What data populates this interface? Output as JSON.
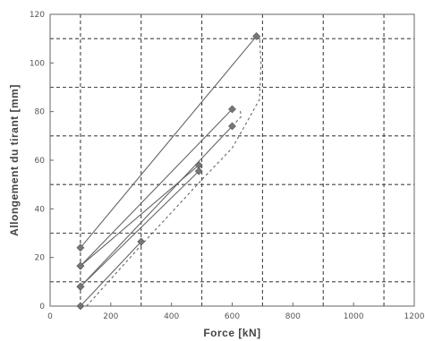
{
  "chart_data": {
    "type": "line",
    "title": "",
    "xlabel": "Force [kN]",
    "ylabel": "Allongement du tirant [mm]",
    "xlim": [
      0,
      1200
    ],
    "ylim": [
      0,
      120
    ],
    "xticks": [
      0,
      200,
      400,
      600,
      800,
      1000,
      1200
    ],
    "yticks": [
      0,
      20,
      40,
      60,
      80,
      100,
      120
    ],
    "tick_labels_x": [
      "0",
      "200",
      "400",
      "600",
      "800",
      "1000",
      "1200"
    ],
    "tick_labels_y": [
      "0",
      "20",
      "40",
      "60",
      "80",
      "100",
      "120"
    ],
    "gridlines_x": [
      100,
      300,
      500,
      700,
      900,
      1100
    ],
    "gridlines_y": [
      10,
      30,
      50,
      70,
      90,
      110
    ],
    "grid": true,
    "legend": "none",
    "series": [
      {
        "x": [
          100,
          680
        ],
        "y": [
          24,
          111
        ],
        "style": "solid",
        "marker": "diamond"
      },
      {
        "x": [
          100,
          600
        ],
        "y": [
          16.5,
          81
        ],
        "style": "solid",
        "marker": "diamond"
      },
      {
        "x": [
          100,
          490
        ],
        "y": [
          16.5,
          58
        ],
        "style": "solid",
        "marker": "diamond"
      },
      {
        "x": [
          100,
          600
        ],
        "y": [
          8,
          74
        ],
        "style": "solid",
        "marker": "diamond"
      },
      {
        "x": [
          100,
          490
        ],
        "y": [
          8,
          55.5
        ],
        "style": "solid",
        "marker": "diamond"
      },
      {
        "x": [
          100,
          300
        ],
        "y": [
          0,
          26.5
        ],
        "style": "solid",
        "marker": "diamond"
      },
      {
        "x": [
          120,
          300,
          500,
          600,
          650,
          690,
          695,
          690
        ],
        "y": [
          0,
          25,
          52,
          65,
          76,
          85,
          100,
          111
        ],
        "style": "dashed",
        "marker": "none"
      },
      {
        "x": [
          600,
          630,
          625
        ],
        "y": [
          74,
          78,
          81
        ],
        "style": "dashed",
        "marker": "none"
      },
      {
        "x": [
          490,
          500,
          495
        ],
        "y": [
          55.5,
          56.5,
          58
        ],
        "style": "dashed",
        "marker": "none"
      }
    ]
  }
}
